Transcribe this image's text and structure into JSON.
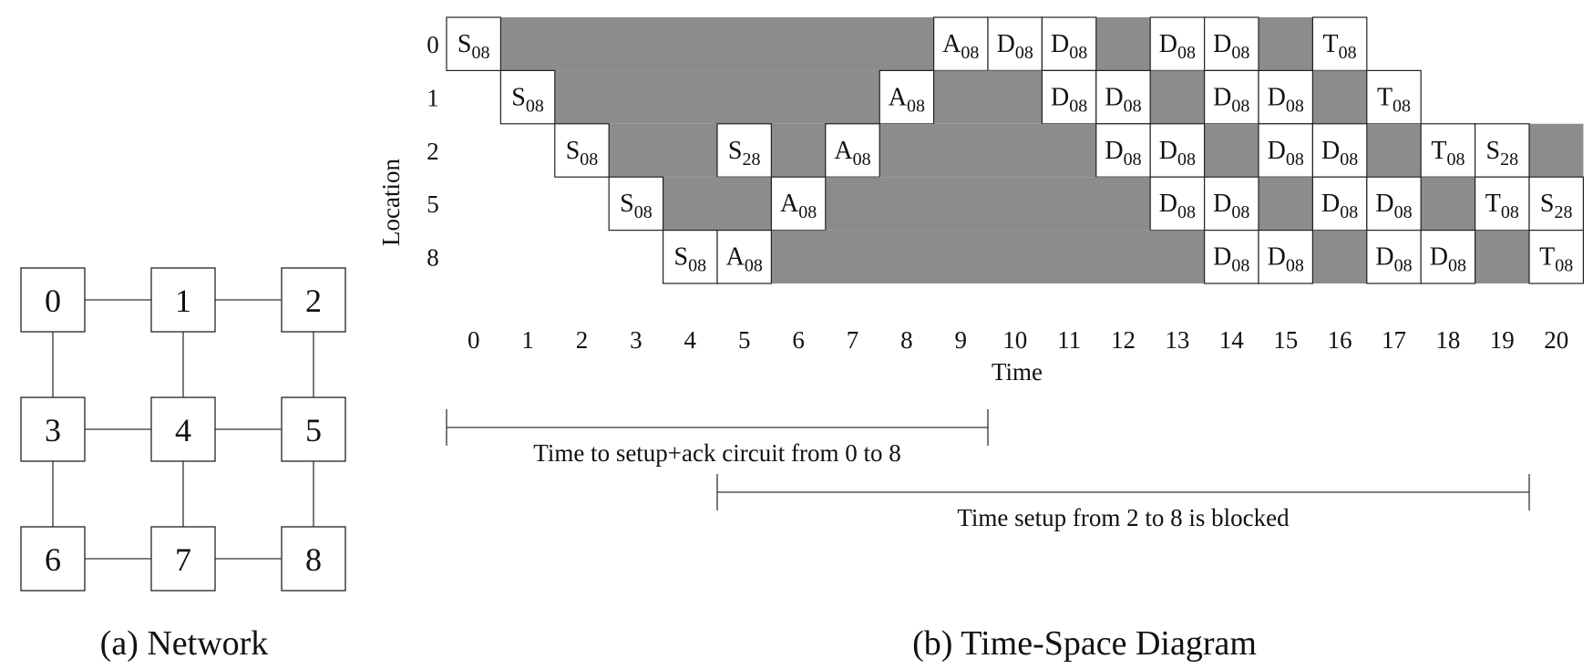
{
  "network": {
    "caption": "(a) Network",
    "nodes": [
      "0",
      "1",
      "2",
      "3",
      "4",
      "5",
      "6",
      "7",
      "8"
    ],
    "edges": [
      [
        "0",
        "1"
      ],
      [
        "1",
        "2"
      ],
      [
        "0",
        "3"
      ],
      [
        "1",
        "4"
      ],
      [
        "2",
        "5"
      ],
      [
        "3",
        "4"
      ],
      [
        "4",
        "5"
      ],
      [
        "3",
        "6"
      ],
      [
        "4",
        "7"
      ],
      [
        "5",
        "8"
      ],
      [
        "6",
        "7"
      ],
      [
        "7",
        "8"
      ]
    ]
  },
  "diagram": {
    "caption": "(b) Time-Space Diagram",
    "y_axis_label": "Location",
    "x_axis_label": "Time",
    "locations": [
      "0",
      "1",
      "2",
      "5",
      "8"
    ],
    "times": [
      "0",
      "1",
      "2",
      "3",
      "4",
      "5",
      "6",
      "7",
      "8",
      "9",
      "10",
      "11",
      "12",
      "13",
      "14",
      "15",
      "16",
      "17",
      "18",
      "19",
      "20"
    ],
    "shade_color": "#8c8c8c",
    "rows": [
      {
        "shaded": [
          [
            1,
            8
          ],
          [
            12,
            12
          ],
          [
            15,
            15
          ]
        ],
        "cells": [
          {
            "t": 0,
            "l": "S",
            "s": "08"
          },
          {
            "t": 9,
            "l": "A",
            "s": "08"
          },
          {
            "t": 10,
            "l": "D",
            "s": "08"
          },
          {
            "t": 11,
            "l": "D",
            "s": "08"
          },
          {
            "t": 13,
            "l": "D",
            "s": "08"
          },
          {
            "t": 14,
            "l": "D",
            "s": "08"
          },
          {
            "t": 16,
            "l": "T",
            "s": "08"
          }
        ]
      },
      {
        "shaded": [
          [
            2,
            7
          ],
          [
            9,
            10
          ],
          [
            13,
            13
          ],
          [
            16,
            16
          ]
        ],
        "cells": [
          {
            "t": 1,
            "l": "S",
            "s": "08"
          },
          {
            "t": 8,
            "l": "A",
            "s": "08"
          },
          {
            "t": 11,
            "l": "D",
            "s": "08"
          },
          {
            "t": 12,
            "l": "D",
            "s": "08"
          },
          {
            "t": 14,
            "l": "D",
            "s": "08"
          },
          {
            "t": 15,
            "l": "D",
            "s": "08"
          },
          {
            "t": 17,
            "l": "T",
            "s": "08"
          }
        ]
      },
      {
        "shaded": [
          [
            3,
            4
          ],
          [
            6,
            6
          ],
          [
            8,
            11
          ],
          [
            14,
            14
          ],
          [
            17,
            17
          ],
          [
            20,
            20
          ]
        ],
        "cells": [
          {
            "t": 2,
            "l": "S",
            "s": "08"
          },
          {
            "t": 5,
            "l": "S",
            "s": "28"
          },
          {
            "t": 7,
            "l": "A",
            "s": "08"
          },
          {
            "t": 12,
            "l": "D",
            "s": "08"
          },
          {
            "t": 13,
            "l": "D",
            "s": "08"
          },
          {
            "t": 15,
            "l": "D",
            "s": "08"
          },
          {
            "t": 16,
            "l": "D",
            "s": "08"
          },
          {
            "t": 18,
            "l": "T",
            "s": "08"
          },
          {
            "t": 19,
            "l": "S",
            "s": "28"
          }
        ]
      },
      {
        "shaded": [
          [
            4,
            5
          ],
          [
            7,
            12
          ],
          [
            15,
            15
          ],
          [
            18,
            18
          ]
        ],
        "cells": [
          {
            "t": 3,
            "l": "S",
            "s": "08"
          },
          {
            "t": 6,
            "l": "A",
            "s": "08"
          },
          {
            "t": 13,
            "l": "D",
            "s": "08"
          },
          {
            "t": 14,
            "l": "D",
            "s": "08"
          },
          {
            "t": 16,
            "l": "D",
            "s": "08"
          },
          {
            "t": 17,
            "l": "D",
            "s": "08"
          },
          {
            "t": 19,
            "l": "T",
            "s": "08"
          },
          {
            "t": 20,
            "l": "S",
            "s": "28"
          }
        ]
      },
      {
        "shaded": [
          [
            6,
            13
          ],
          [
            16,
            16
          ],
          [
            19,
            19
          ]
        ],
        "cells": [
          {
            "t": 4,
            "l": "S",
            "s": "08"
          },
          {
            "t": 5,
            "l": "A",
            "s": "08"
          },
          {
            "t": 14,
            "l": "D",
            "s": "08"
          },
          {
            "t": 15,
            "l": "D",
            "s": "08"
          },
          {
            "t": 17,
            "l": "D",
            "s": "08"
          },
          {
            "t": 18,
            "l": "D",
            "s": "08"
          },
          {
            "t": 20,
            "l": "T",
            "s": "08"
          }
        ]
      }
    ],
    "spans": [
      {
        "label": "Time to setup+ack circuit from 0 to 8",
        "from": 0,
        "to": 10
      },
      {
        "label": "Time setup from 2 to 8 is blocked",
        "from": 5,
        "to": 20
      }
    ]
  }
}
